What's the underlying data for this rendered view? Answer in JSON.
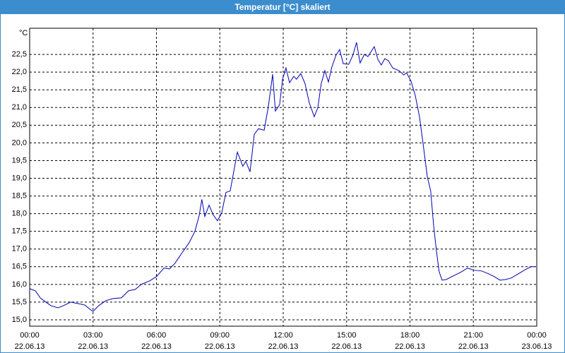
{
  "window_title": "Temperatur [°C] skaliert",
  "chart_data": {
    "type": "line",
    "y_unit": "°C",
    "xlim": [
      0,
      24
    ],
    "ylim": [
      14.82,
      23.24
    ],
    "grid": true,
    "color": "#0000b4",
    "xticks": [
      {
        "value": 0,
        "label": "00:00"
      },
      {
        "value": 3,
        "label": "03:00"
      },
      {
        "value": 6,
        "label": "06:00"
      },
      {
        "value": 9,
        "label": "09:00"
      },
      {
        "value": 12,
        "label": "12:00"
      },
      {
        "value": 15,
        "label": "15:00"
      },
      {
        "value": 18,
        "label": "18:00"
      },
      {
        "value": 21,
        "label": "21:00"
      },
      {
        "value": 24,
        "label": "00:00"
      }
    ],
    "xtick_dates": [
      "22.06.13",
      "22.06.13",
      "22.06.13",
      "22.06.13",
      "22.06.13",
      "22.06.13",
      "22.06.13",
      "22.06.13",
      "23.06.13"
    ],
    "yticks": [
      {
        "value": 15,
        "label": "15,0"
      },
      {
        "value": 15.5,
        "label": "15,5"
      },
      {
        "value": 16,
        "label": "16,0"
      },
      {
        "value": 16.5,
        "label": "16,5"
      },
      {
        "value": 17,
        "label": "17,0"
      },
      {
        "value": 17.5,
        "label": "17,5"
      },
      {
        "value": 18,
        "label": "18,0"
      },
      {
        "value": 18.5,
        "label": "18,5"
      },
      {
        "value": 19,
        "label": "19,0"
      },
      {
        "value": 19.5,
        "label": "19,5"
      },
      {
        "value": 20,
        "label": "20,0"
      },
      {
        "value": 20.5,
        "label": "20,5"
      },
      {
        "value": 21,
        "label": "21,0"
      },
      {
        "value": 21.5,
        "label": "21,5"
      },
      {
        "value": 22,
        "label": "22,0"
      },
      {
        "value": 22.5,
        "label": "22,5"
      }
    ],
    "x": [
      0,
      0.27,
      0.5,
      0.77,
      1.0,
      1.34,
      1.6,
      1.94,
      2.27,
      2.6,
      2.94,
      3.0,
      3.27,
      3.6,
      3.94,
      4.34,
      4.68,
      5.0,
      5.28,
      5.68,
      6.0,
      6.35,
      6.62,
      6.88,
      7.22,
      7.55,
      7.82,
      8.02,
      8.15,
      8.29,
      8.49,
      8.69,
      8.89,
      9.09,
      9.29,
      9.49,
      9.83,
      10.09,
      10.23,
      10.43,
      10.63,
      10.83,
      11.1,
      11.3,
      11.5,
      11.63,
      11.83,
      11.97,
      12.13,
      12.3,
      12.5,
      12.63,
      12.83,
      13.03,
      13.23,
      13.47,
      13.64,
      13.8,
      13.97,
      14.14,
      14.3,
      14.5,
      14.67,
      14.84,
      15.1,
      15.3,
      15.47,
      15.64,
      15.84,
      16.01,
      16.31,
      16.48,
      16.64,
      16.81,
      16.98,
      17.18,
      17.48,
      17.71,
      17.84,
      18.05,
      18.25,
      18.45,
      18.65,
      18.82,
      18.98,
      19.12,
      19.25,
      19.38,
      19.52,
      19.72,
      20.05,
      20.39,
      20.72,
      21.06,
      21.39,
      21.72,
      21.99,
      22.26,
      22.53,
      22.79,
      23.13,
      23.46,
      23.73,
      23.93
    ],
    "values": [
      15.88,
      15.82,
      15.62,
      15.5,
      15.4,
      15.34,
      15.4,
      15.5,
      15.46,
      15.42,
      15.26,
      15.24,
      15.4,
      15.54,
      15.6,
      15.62,
      15.82,
      15.86,
      16.0,
      16.1,
      16.22,
      16.46,
      16.44,
      16.6,
      16.9,
      17.18,
      17.5,
      17.94,
      18.4,
      17.92,
      18.24,
      17.96,
      17.8,
      18.02,
      18.6,
      18.64,
      19.74,
      19.34,
      19.48,
      19.18,
      20.24,
      20.4,
      20.36,
      21.04,
      21.94,
      20.9,
      21.08,
      21.8,
      22.12,
      21.7,
      21.88,
      21.8,
      21.96,
      21.68,
      21.14,
      20.74,
      21.0,
      21.68,
      22.04,
      21.72,
      22.14,
      22.48,
      22.64,
      22.24,
      22.22,
      22.48,
      22.84,
      22.26,
      22.5,
      22.44,
      22.72,
      22.36,
      22.2,
      22.38,
      22.32,
      22.12,
      22.04,
      21.92,
      21.98,
      21.74,
      21.34,
      20.74,
      19.84,
      19.04,
      18.64,
      17.66,
      16.96,
      16.36,
      16.12,
      16.14,
      16.24,
      16.34,
      16.46,
      16.4,
      16.38,
      16.3,
      16.22,
      16.12,
      16.14,
      16.18,
      16.3,
      16.42,
      16.5,
      16.5
    ]
  }
}
